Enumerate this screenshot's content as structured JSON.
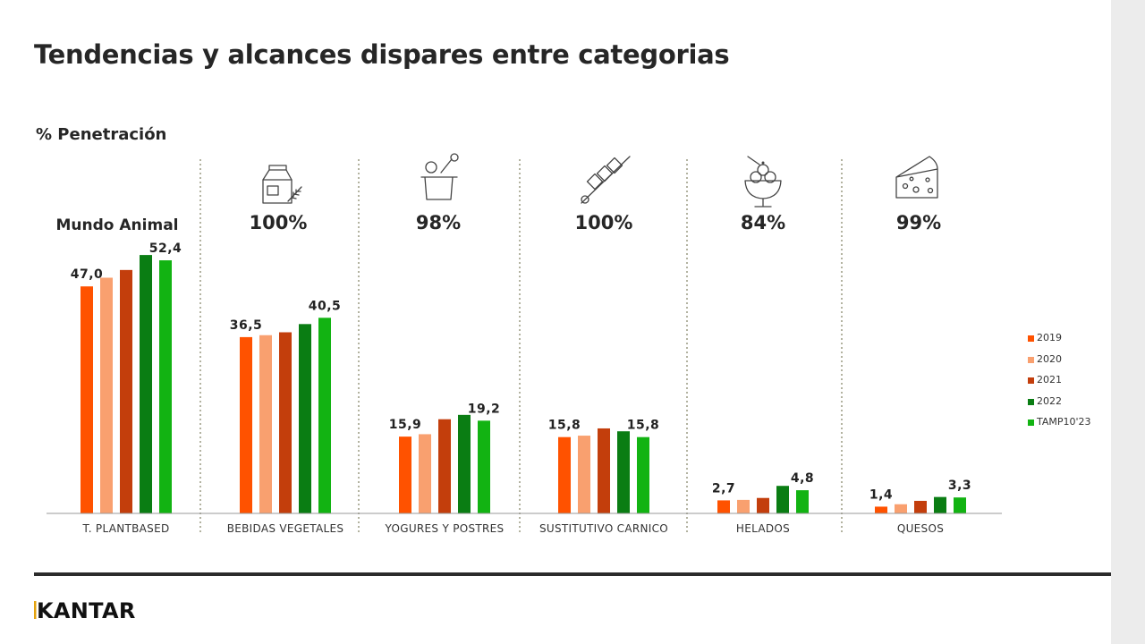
{
  "page": {
    "title": "Tendencias y alcances dispares entre categorias",
    "subtitle": "% Penetración",
    "brand": "KANTAR"
  },
  "panel_header": "Mundo Animal",
  "colors": {
    "2019": "#ff5200",
    "2020": "#f9a06f",
    "2021": "#c33e0c",
    "2022": "#0a7d13",
    "TAMP10'23": "#12b312",
    "divider": "#8a8a6e",
    "axis": "#999999",
    "icon": "#444444"
  },
  "chart_data": {
    "type": "bar",
    "categories": [
      "T. PLANTBASED",
      "BEBIDAS VEGETALES",
      "YOGURES  Y POSTRES",
      "SUSTITUTIVO CARNICO",
      "HELADOS",
      "QUESOS"
    ],
    "category_icons": [
      "",
      "milk-carton-icon",
      "yogurt-cup-icon",
      "skewer-icon",
      "ice-cream-icon",
      "cheese-icon"
    ],
    "category_percentages": [
      "",
      "100%",
      "98%",
      "100%",
      "84%",
      "99%"
    ],
    "series": [
      {
        "name": "2019",
        "values": [
          47.0,
          36.5,
          15.9,
          15.8,
          2.7,
          1.4
        ]
      },
      {
        "name": "2020",
        "values": [
          48.8,
          36.9,
          16.4,
          16.1,
          2.8,
          1.9
        ]
      },
      {
        "name": "2021",
        "values": [
          50.4,
          37.5,
          19.5,
          17.6,
          3.2,
          2.6
        ]
      },
      {
        "name": "2022",
        "values": [
          53.5,
          39.2,
          20.4,
          17.0,
          5.7,
          3.4
        ]
      },
      {
        "name": "TAMP10'23",
        "values": [
          52.4,
          40.5,
          19.2,
          15.8,
          4.8,
          3.3
        ]
      }
    ],
    "data_labels": [
      [
        {
          "series": 0,
          "text": "47,0"
        },
        {
          "series": 4,
          "text": "52,4"
        }
      ],
      [
        {
          "series": 0,
          "text": "36,5"
        },
        {
          "series": 4,
          "text": "40,5"
        }
      ],
      [
        {
          "series": 0,
          "text": "15,9"
        },
        {
          "series": 4,
          "text": "19,2"
        }
      ],
      [
        {
          "series": 0,
          "text": "15,8"
        },
        {
          "series": 4,
          "text": "15,8"
        }
      ],
      [
        {
          "series": 0,
          "text": "2,7"
        },
        {
          "series": 4,
          "text": "4,8"
        }
      ],
      [
        {
          "series": 0,
          "text": "1,4"
        },
        {
          "series": 4,
          "text": "3,3"
        }
      ]
    ],
    "ylim": [
      0,
      55
    ],
    "legend_position": "right",
    "grid": false
  }
}
